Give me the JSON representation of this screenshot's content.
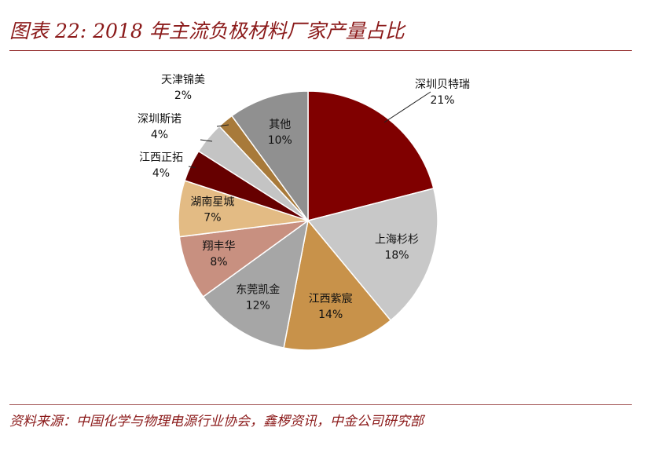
{
  "title": "图表 22: 2018 年主流负极材料厂家产量占比",
  "source": "资料来源：中国化学与物理电源行业协会，鑫椤资讯，中金公司研究部",
  "chart_data": {
    "type": "pie",
    "title": "2018 年主流负极材料厂家产量占比",
    "start_angle": "12 o'clock",
    "direction": "clockwise",
    "slices": [
      {
        "label": "深圳贝特瑞",
        "value": 21,
        "value_label": "21%",
        "color": "#800000"
      },
      {
        "label": "上海杉杉",
        "value": 18,
        "value_label": "18%",
        "color": "#c8c8c8"
      },
      {
        "label": "江西紫宸",
        "value": 14,
        "value_label": "14%",
        "color": "#c8924a"
      },
      {
        "label": "东莞凯金",
        "value": 12,
        "value_label": "12%",
        "color": "#a6a6a6"
      },
      {
        "label": "翔丰华",
        "value": 8,
        "value_label": "8%",
        "color": "#c89080"
      },
      {
        "label": "湖南星城",
        "value": 7,
        "value_label": "7%",
        "color": "#e3bb84"
      },
      {
        "label": "江西正拓",
        "value": 4,
        "value_label": "4%",
        "color": "#660000"
      },
      {
        "label": "深圳斯诺",
        "value": 4,
        "value_label": "4%",
        "color": "#c4c4c4"
      },
      {
        "label": "天津锦美",
        "value": 2,
        "value_label": "2%",
        "color": "#a87a3a"
      },
      {
        "label": "其他",
        "value": 10,
        "value_label": "10%",
        "color": "#909090"
      }
    ]
  }
}
